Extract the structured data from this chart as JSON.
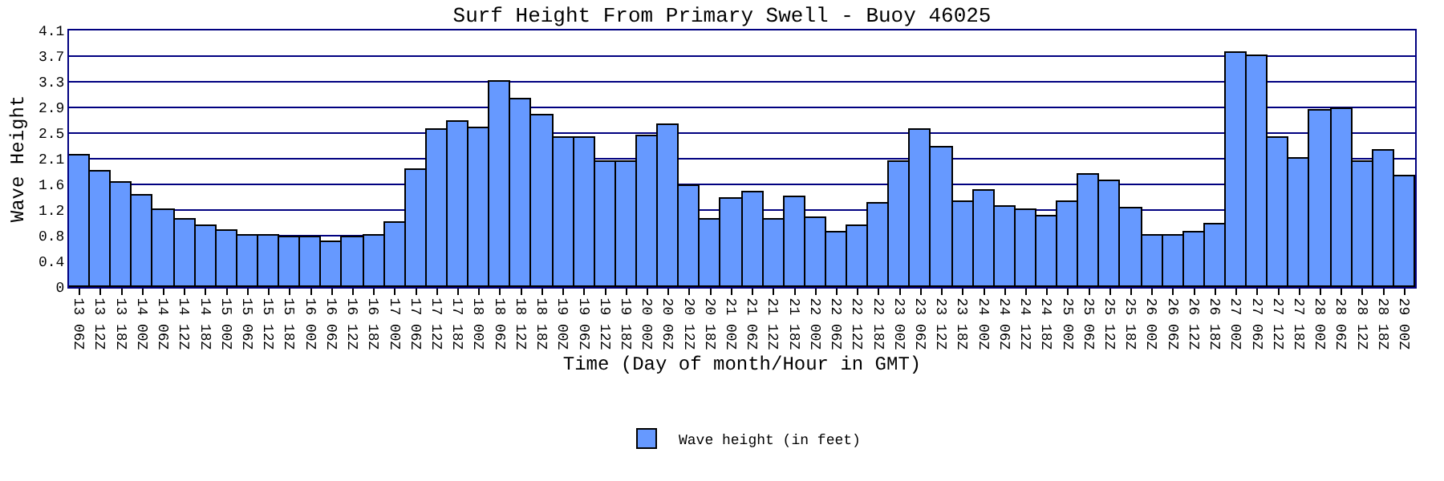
{
  "chart_data": {
    "type": "bar",
    "title": "Surf Height From Primary Swell - Buoy 46025",
    "xlabel": "Time (Day of month/Hour in GMT)",
    "ylabel": "Wave Height",
    "categories": [
      "13 06Z",
      "13 12Z",
      "13 18Z",
      "14 00Z",
      "14 06Z",
      "14 12Z",
      "14 18Z",
      "15 00Z",
      "15 06Z",
      "15 12Z",
      "15 18Z",
      "16 00Z",
      "16 06Z",
      "16 12Z",
      "16 18Z",
      "17 00Z",
      "17 06Z",
      "17 12Z",
      "17 18Z",
      "18 00Z",
      "18 06Z",
      "18 12Z",
      "18 18Z",
      "19 00Z",
      "19 06Z",
      "19 12Z",
      "19 18Z",
      "20 00Z",
      "20 06Z",
      "20 12Z",
      "20 18Z",
      "21 00Z",
      "21 06Z",
      "21 12Z",
      "21 18Z",
      "22 00Z",
      "22 06Z",
      "22 12Z",
      "22 18Z",
      "23 00Z",
      "23 06Z",
      "23 12Z",
      "23 18Z",
      "24 00Z",
      "24 06Z",
      "24 12Z",
      "24 18Z",
      "25 00Z",
      "25 06Z",
      "25 12Z",
      "25 18Z",
      "26 00Z",
      "26 06Z",
      "26 12Z",
      "26 18Z",
      "27 00Z",
      "27 06Z",
      "27 12Z",
      "27 18Z",
      "28 00Z",
      "28 06Z",
      "28 12Z",
      "28 18Z",
      "29 00Z"
    ],
    "series": [
      {
        "name": "Wave height (in feet)",
        "color": "#6699ff",
        "values": [
          2.11,
          1.84,
          1.66,
          1.47,
          1.24,
          1.08,
          0.97,
          0.89,
          0.81,
          0.81,
          0.8,
          0.8,
          0.72,
          0.8,
          0.81,
          1.03,
          1.86,
          2.5,
          2.63,
          2.53,
          3.28,
          3.0,
          2.73,
          2.38,
          2.38,
          1.99,
          1.99,
          2.42,
          2.59,
          1.62,
          1.08,
          1.41,
          1.51,
          1.08,
          1.43,
          1.1,
          0.87,
          0.97,
          1.32,
          2.01,
          2.5,
          2.24,
          1.35,
          1.53,
          1.28,
          1.23,
          1.13,
          1.37,
          1.8,
          1.7,
          1.25,
          0.83,
          0.83,
          0.87,
          1.01,
          3.73,
          3.69,
          2.38,
          2.04,
          2.82,
          2.84,
          1.99,
          2.19,
          1.76
        ]
      }
    ],
    "ylim": [
      0,
      4.1
    ],
    "yticks": [
      0,
      {
        "value": 0.41,
        "label": "0.4"
      },
      {
        "value": 0.82,
        "label": "0.8"
      },
      {
        "value": 1.23,
        "label": "1.2"
      },
      {
        "value": 1.64,
        "label": "1.6"
      },
      {
        "value": 2.05,
        "label": "2.1"
      },
      {
        "value": 2.46,
        "label": "2.5"
      },
      {
        "value": 2.87,
        "label": "2.9"
      },
      {
        "value": 3.28,
        "label": "3.3"
      },
      {
        "value": 3.69,
        "label": "3.7"
      },
      4.1
    ],
    "grid": "y",
    "legend": "bottom"
  }
}
